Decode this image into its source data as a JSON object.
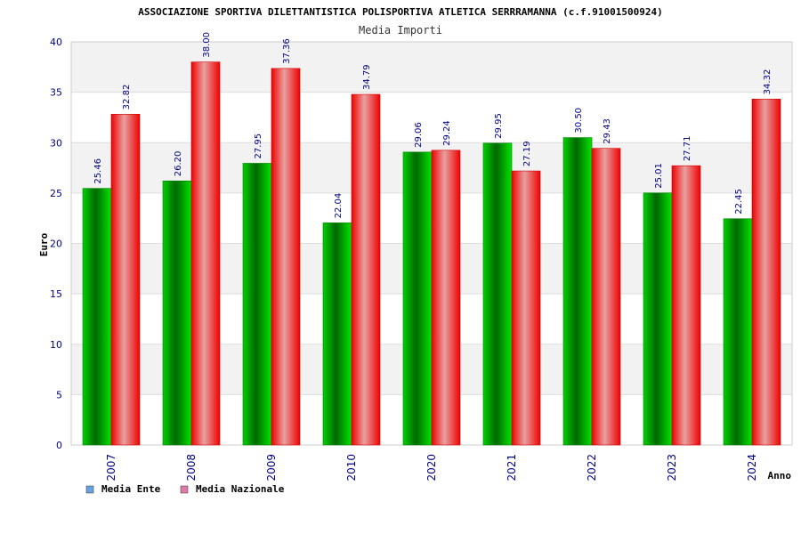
{
  "chart_data": {
    "type": "bar",
    "title": "ASSOCIAZIONE SPORTIVA DILETTANTISTICA POLISPORTIVA ATLETICA SERRRAMANNA (c.f.91001500924)",
    "subtitle": "Media Importi",
    "xlabel": "Anno",
    "ylabel": "Euro",
    "ylim": [
      0,
      40
    ],
    "yticks": [
      0,
      5,
      10,
      15,
      20,
      25,
      30,
      35,
      40
    ],
    "categories": [
      "2007",
      "2008",
      "2009",
      "2010",
      "2020",
      "2021",
      "2022",
      "2023",
      "2024"
    ],
    "series": [
      {
        "name": "Media Ente",
        "values": [
          25.46,
          26.2,
          27.95,
          22.04,
          29.06,
          29.95,
          30.5,
          25.01,
          22.45
        ],
        "labels": [
          "25.46",
          "26.20",
          "27.95",
          "22.04",
          "29.06",
          "29.95",
          "30.50",
          "25.01",
          "22.45"
        ],
        "color": "#00a000"
      },
      {
        "name": "Media Nazionale",
        "values": [
          32.82,
          38.0,
          37.36,
          34.79,
          29.24,
          27.19,
          29.43,
          27.71,
          34.32
        ],
        "labels": [
          "32.82",
          "38.00",
          "37.36",
          "34.79",
          "29.24",
          "27.19",
          "29.43",
          "27.71",
          "34.32"
        ],
        "color": "#ff0000"
      }
    ],
    "legend": {
      "position": "bottom-left",
      "items": [
        {
          "label": "Media Ente",
          "color": "#66a3e0"
        },
        {
          "label": "Media Nazionale",
          "color": "#e07aa8"
        }
      ]
    },
    "grid": true
  }
}
